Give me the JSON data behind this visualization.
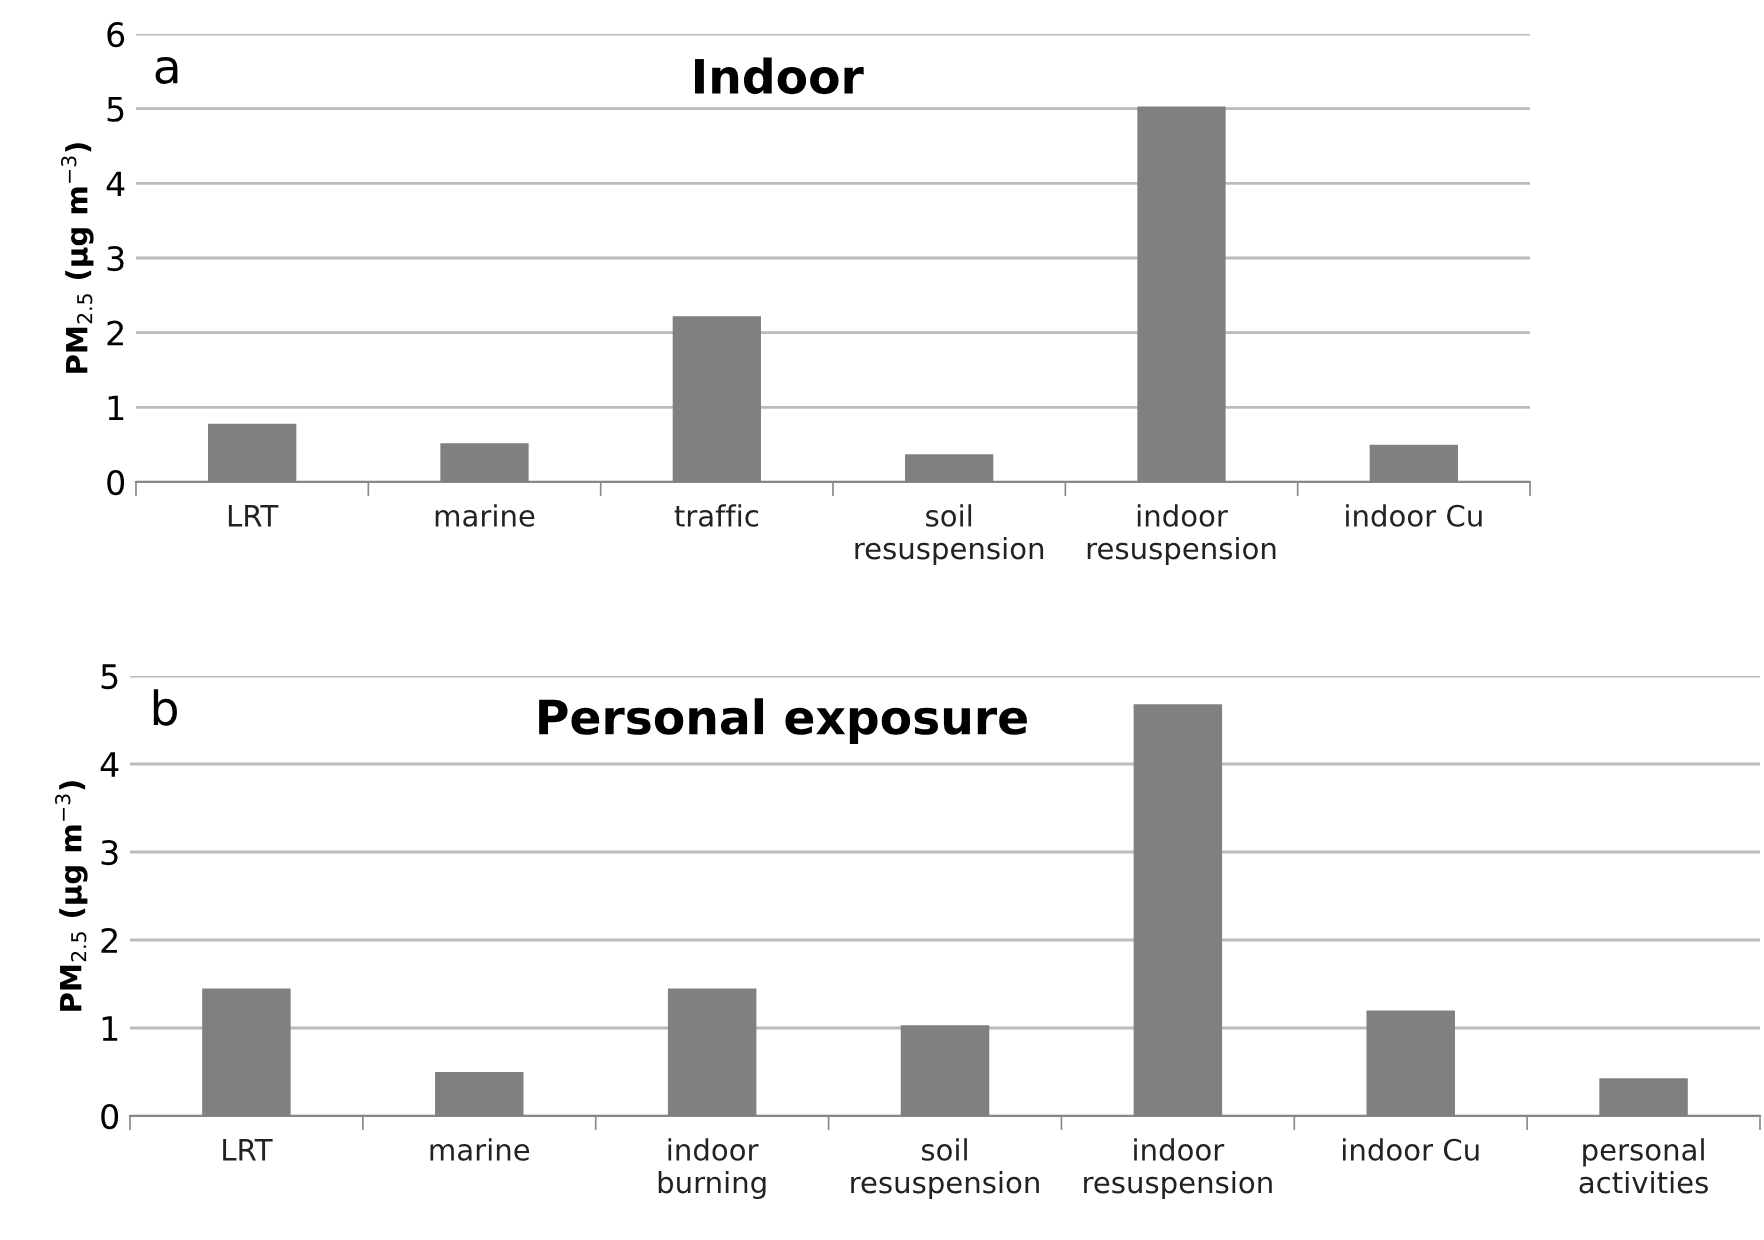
{
  "chart_data": [
    {
      "type": "bar",
      "title": "Indoor",
      "ylabel": "PM$_{2.5}$ (µg m$^{−3}$)",
      "annotations": [
        "a"
      ],
      "categories": [
        "LRT",
        "marine",
        "traffic",
        "soil\nresuspension",
        "indoor\nresuspension",
        "indoor Cu"
      ],
      "values": [
        0.78,
        0.52,
        2.22,
        0.37,
        5.03,
        0.5
      ],
      "color": "#808080",
      "ylim": [
        0,
        6
      ],
      "yticks": [
        0,
        1,
        2,
        3,
        4,
        5,
        6
      ],
      "grid": "y"
    },
    {
      "type": "bar",
      "title": "Personal exposure",
      "ylabel": "PM$_{2.5}$ (µg m$^{−3}$)",
      "annotations": [
        "b"
      ],
      "categories": [
        "LRT",
        "marine",
        "indoor\nburning",
        "soil\nresuspension",
        "indoor\nresuspension",
        "indoor Cu",
        "personal\nactivities"
      ],
      "values": [
        1.45,
        0.5,
        1.45,
        1.03,
        4.68,
        1.2,
        0.43
      ],
      "color": "#808080",
      "ylim": [
        0,
        5
      ],
      "yticks": [
        0,
        1,
        2,
        3,
        4,
        5
      ],
      "grid": "y"
    }
  ]
}
